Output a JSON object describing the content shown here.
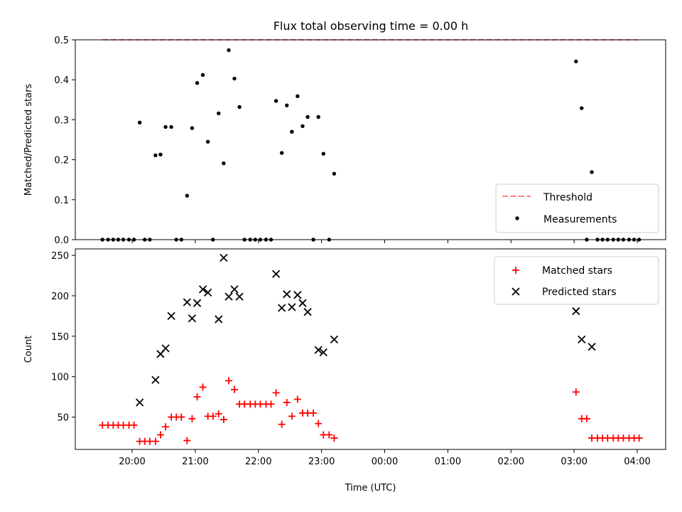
{
  "figure": {
    "title": "Flux total observing time = 0.00 h"
  },
  "chart_data": [
    {
      "type": "scatter",
      "ylabel": "Matched/Predicted stars",
      "xlabel": "",
      "xlim": [
        -0.9,
        8.45
      ],
      "ylim": [
        0,
        0.5
      ],
      "x_ticks": [
        0,
        1,
        2,
        3,
        4,
        5,
        6,
        7,
        8
      ],
      "x_tick_labels": [
        "",
        "",
        "",
        "",
        "",
        "",
        "",
        "",
        ""
      ],
      "y_ticks": [
        0,
        0.1,
        0.2,
        0.3,
        0.4,
        0.5
      ],
      "y_tick_labels": [
        "0.0",
        "0.1",
        "0.2",
        "0.3",
        "0.4",
        "0.5"
      ],
      "grid": false,
      "legend_position": "lower-right",
      "threshold": {
        "name": "Threshold",
        "y": 0.5,
        "x_range": [
          -0.47,
          8.0
        ],
        "color": "#ff7f7f",
        "style": "dashed"
      },
      "series": [
        {
          "name": "Measurements",
          "marker": "dot",
          "color": "#000000",
          "points": [
            [
              -0.47,
              0
            ],
            [
              -0.38,
              0
            ],
            [
              -0.3,
              0
            ],
            [
              -0.22,
              0
            ],
            [
              -0.14,
              0
            ],
            [
              -0.05,
              0
            ],
            [
              0.03,
              0
            ],
            [
              0.12,
              0.293
            ],
            [
              0.2,
              0
            ],
            [
              0.28,
              0
            ],
            [
              0.37,
              0.211
            ],
            [
              0.45,
              0.213
            ],
            [
              0.53,
              0.282
            ],
            [
              0.62,
              0.282
            ],
            [
              0.7,
              0
            ],
            [
              0.78,
              0
            ],
            [
              0.87,
              0.11
            ],
            [
              0.95,
              0.279
            ],
            [
              1.03,
              0.392
            ],
            [
              1.12,
              0.412
            ],
            [
              1.2,
              0.245
            ],
            [
              1.28,
              0
            ],
            [
              1.37,
              0.316
            ],
            [
              1.45,
              0.191
            ],
            [
              1.53,
              0.474
            ],
            [
              1.62,
              0.403
            ],
            [
              1.7,
              0.332
            ],
            [
              1.78,
              0
            ],
            [
              1.87,
              0
            ],
            [
              1.95,
              0
            ],
            [
              2.03,
              0
            ],
            [
              2.12,
              0
            ],
            [
              2.2,
              0
            ],
            [
              2.28,
              0.347
            ],
            [
              2.37,
              0.217
            ],
            [
              2.45,
              0.336
            ],
            [
              2.53,
              0.27
            ],
            [
              2.62,
              0.359
            ],
            [
              2.7,
              0.284
            ],
            [
              2.78,
              0.307
            ],
            [
              2.87,
              0
            ],
            [
              2.95,
              0.307
            ],
            [
              3.03,
              0.215
            ],
            [
              3.12,
              0
            ],
            [
              3.2,
              0.165
            ],
            [
              7.03,
              0.446
            ],
            [
              7.12,
              0.329
            ],
            [
              7.2,
              0
            ],
            [
              7.28,
              0.169
            ],
            [
              7.37,
              0
            ],
            [
              7.45,
              0
            ],
            [
              7.53,
              0
            ],
            [
              7.62,
              0
            ],
            [
              7.7,
              0
            ],
            [
              7.78,
              0
            ],
            [
              7.87,
              0
            ],
            [
              7.95,
              0
            ],
            [
              8.03,
              0
            ]
          ]
        }
      ]
    },
    {
      "type": "scatter",
      "ylabel": "Count",
      "xlabel": "Time (UTC)",
      "xlim": [
        -0.9,
        8.45
      ],
      "ylim": [
        10,
        258
      ],
      "x_ticks": [
        0,
        1,
        2,
        3,
        4,
        5,
        6,
        7,
        8
      ],
      "x_tick_labels": [
        "20:00",
        "21:00",
        "22:00",
        "23:00",
        "00:00",
        "01:00",
        "02:00",
        "03:00",
        "04:00"
      ],
      "y_ticks": [
        50,
        100,
        150,
        200,
        250
      ],
      "y_tick_labels": [
        "50",
        "100",
        "150",
        "200",
        "250"
      ],
      "grid": false,
      "legend_position": "top-right",
      "series": [
        {
          "name": "Matched stars",
          "marker": "plus",
          "color": "#ff0000",
          "points": [
            [
              -0.47,
              40
            ],
            [
              -0.38,
              40
            ],
            [
              -0.3,
              40
            ],
            [
              -0.22,
              40
            ],
            [
              -0.14,
              40
            ],
            [
              -0.05,
              40
            ],
            [
              0.03,
              40
            ],
            [
              0.12,
              20
            ],
            [
              0.2,
              20
            ],
            [
              0.28,
              20
            ],
            [
              0.37,
              20
            ],
            [
              0.45,
              28
            ],
            [
              0.53,
              38
            ],
            [
              0.62,
              50
            ],
            [
              0.7,
              50
            ],
            [
              0.78,
              50
            ],
            [
              0.87,
              21
            ],
            [
              0.95,
              48
            ],
            [
              1.03,
              75
            ],
            [
              1.12,
              87
            ],
            [
              1.2,
              51
            ],
            [
              1.28,
              51
            ],
            [
              1.37,
              54
            ],
            [
              1.45,
              47
            ],
            [
              1.53,
              95
            ],
            [
              1.62,
              84
            ],
            [
              1.7,
              66
            ],
            [
              1.78,
              66
            ],
            [
              1.87,
              66
            ],
            [
              1.95,
              66
            ],
            [
              2.03,
              66
            ],
            [
              2.12,
              66
            ],
            [
              2.2,
              66
            ],
            [
              2.28,
              80
            ],
            [
              2.37,
              41
            ],
            [
              2.45,
              68
            ],
            [
              2.53,
              51
            ],
            [
              2.62,
              72
            ],
            [
              2.7,
              55
            ],
            [
              2.78,
              55
            ],
            [
              2.87,
              55
            ],
            [
              2.95,
              42
            ],
            [
              3.03,
              28
            ],
            [
              3.12,
              28
            ],
            [
              3.2,
              24
            ],
            [
              7.03,
              81
            ],
            [
              7.12,
              48
            ],
            [
              7.2,
              48
            ],
            [
              7.28,
              24
            ],
            [
              7.37,
              24
            ],
            [
              7.45,
              24
            ],
            [
              7.53,
              24
            ],
            [
              7.62,
              24
            ],
            [
              7.7,
              24
            ],
            [
              7.78,
              24
            ],
            [
              7.87,
              24
            ],
            [
              7.95,
              24
            ],
            [
              8.03,
              24
            ]
          ]
        },
        {
          "name": "Predicted stars",
          "marker": "x",
          "color": "#000000",
          "points": [
            [
              0.12,
              68
            ],
            [
              0.37,
              96
            ],
            [
              0.45,
              128
            ],
            [
              0.53,
              135
            ],
            [
              0.62,
              175
            ],
            [
              0.87,
              192
            ],
            [
              0.95,
              172
            ],
            [
              1.03,
              191
            ],
            [
              1.12,
              208
            ],
            [
              1.2,
              204
            ],
            [
              1.37,
              171
            ],
            [
              1.45,
              247
            ],
            [
              1.53,
              199
            ],
            [
              1.62,
              208
            ],
            [
              1.7,
              199
            ],
            [
              2.28,
              227
            ],
            [
              2.37,
              185
            ],
            [
              2.45,
              202
            ],
            [
              2.53,
              186
            ],
            [
              2.62,
              201
            ],
            [
              2.7,
              191
            ],
            [
              2.78,
              180
            ],
            [
              2.95,
              133
            ],
            [
              3.03,
              130
            ],
            [
              3.2,
              146
            ],
            [
              7.03,
              181
            ],
            [
              7.12,
              146
            ],
            [
              7.28,
              137
            ]
          ]
        }
      ]
    }
  ]
}
